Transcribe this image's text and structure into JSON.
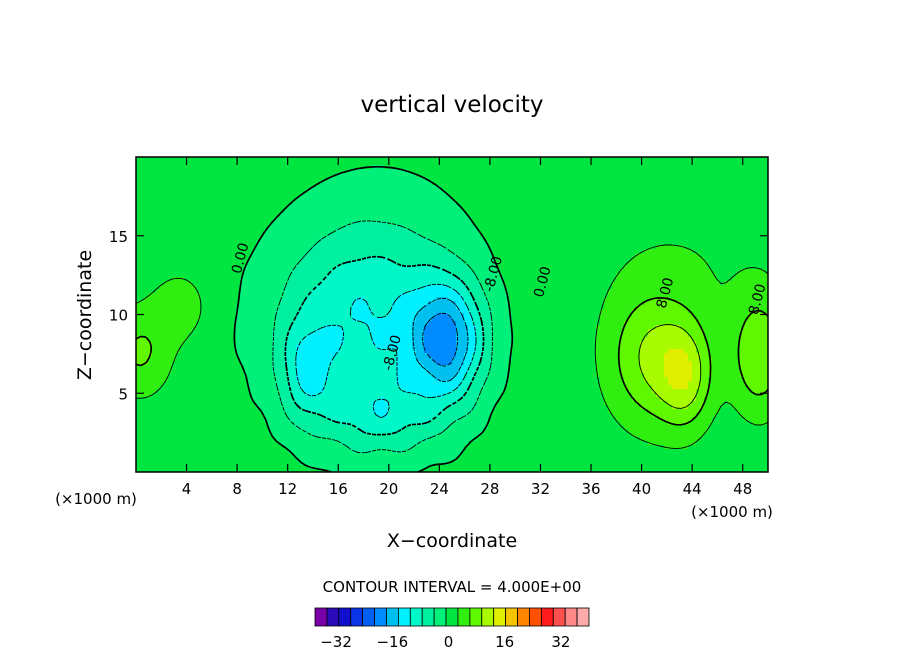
{
  "chart_data": {
    "type": "heatmap",
    "title": "vertical velocity",
    "xlabel": "X−coordinate",
    "ylabel": "Z−coordinate",
    "x_unit_left": "(×1000 m)",
    "x_unit_right": "(×1000 m)",
    "xlim": [
      0,
      50
    ],
    "ylim": [
      0,
      20
    ],
    "x_ticks": [
      4,
      8,
      12,
      16,
      20,
      24,
      28,
      32,
      36,
      40,
      44,
      48
    ],
    "y_ticks": [
      5,
      10,
      15
    ],
    "contour_interval_text": "CONTOUR INTERVAL = 4.000E+00",
    "contour_interval": 4.0,
    "contour_labels": [
      {
        "text": "0.00",
        "x": 8.6,
        "y": 13.5
      },
      {
        "text": "0.00",
        "x": 32.5,
        "y": 12.0
      },
      {
        "text": "-8.00",
        "x": 20.6,
        "y": 7.5
      },
      {
        "text": "-8.00",
        "x": 28.6,
        "y": 12.5
      },
      {
        "text": "8.00",
        "x": 42.2,
        "y": 11.3
      },
      {
        "text": "8.00",
        "x": 49.5,
        "y": 10.9
      }
    ],
    "colorbar": {
      "levels": [
        -40,
        -36,
        -32,
        -28,
        -24,
        -20,
        -16,
        -12,
        -8,
        -4,
        0,
        4,
        8,
        12,
        16,
        20,
        24,
        28,
        32,
        36
      ],
      "colors": [
        "#7a00a8",
        "#2a0ab8",
        "#1010cc",
        "#0a34e6",
        "#0060f2",
        "#008cff",
        "#00c0f0",
        "#00f0ff",
        "#00f8c8",
        "#00f0a0",
        "#00f07a",
        "#00e640",
        "#30ee10",
        "#60f800",
        "#a8fb00",
        "#e0ee00",
        "#f4c400",
        "#ff8400",
        "#ff5000",
        "#ff1c1c",
        "#ff5050",
        "#ff8888",
        "#ffaaaa"
      ],
      "tick_labels": [
        "−32",
        "−16",
        "0",
        "16",
        "32"
      ],
      "tick_values": [
        -32,
        -16,
        0,
        16,
        32
      ]
    },
    "features": [
      {
        "kind": "downdraft",
        "x": 24.5,
        "y": 8,
        "min": -20
      },
      {
        "kind": "updraft",
        "x": 40.5,
        "y": 7,
        "max": 12
      },
      {
        "kind": "updraft",
        "x": 48.5,
        "y": 7,
        "max": 12
      },
      {
        "kind": "updraft",
        "x": 0.5,
        "y": 7.5,
        "max": 8
      }
    ]
  }
}
